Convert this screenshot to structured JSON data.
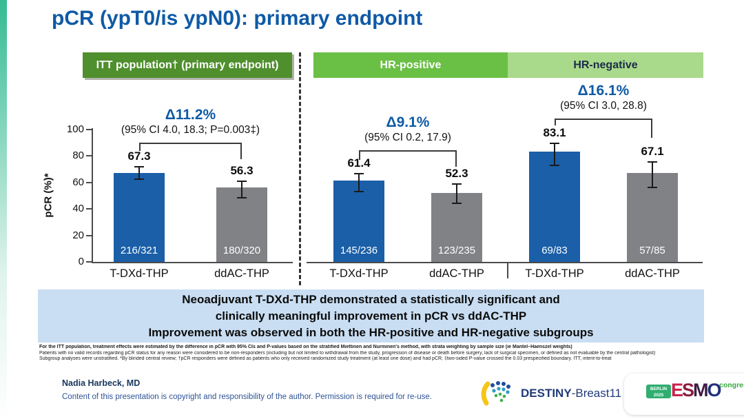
{
  "slide": {
    "banner_lines": [
      "Neoadjuvant T-DXd-THP demonstrated a statistically significant and",
      "clinically meaningful improvement in pCR vs ddAC-THP",
      "Improvement was observed in both the HR-positive and HR-negative subgroups"
    ],
    "footnotes": [
      "For the ITT population, treatment effects were estimated by the difference in pCR with 95% CIs and P-values based on the stratified Miettinen and Nurminen's method, with strata weighting by sample size (ie Mantel–Haenszel weights)",
      "Patients with no valid records regarding pCR status for any reason were considered to be non-responders (including but not limited to withdrawal from the study, progression of disease or death before surgery, lack of surgical specimen, or defined as not evaluable by the central pathologist)",
      "Subgroup analyses were unstratified. *By blinded central review; †pCR responders were defined as patients who only received randomized study treatment (at least one dose) and had pCR; ‡two-sided P-value crossed the 0.03 prespecified boundary. ITT, intent-to-treat"
    ],
    "footer": {
      "author": "Nadia Harbeck, MD",
      "copyright": "Content of this presentation is copyright and responsibility of the author. Permission is required for re-use."
    },
    "logos": {
      "destiny": {
        "bold": "DESTINY",
        "rest": "-Breast11"
      },
      "esmo": {
        "location": "BERLIN",
        "year": "2025",
        "letters": [
          "E",
          "S",
          "M",
          "O"
        ],
        "congress": "congress"
      }
    }
  },
  "colors": {
    "title_blue": "#0f5aa5",
    "delta_blue": "#0f5aa5",
    "bar_blue": "#1a5fa8",
    "bar_gray": "#808285",
    "itt_green": "#4f8f2d",
    "hrpos_green": "#6abf45",
    "hrneg_green": "#a9d98a",
    "banner_bg": "#c9def2",
    "axis_gray": "#4a4a4a",
    "esmo_letter_colors": [
      "#c8234b",
      "#8c1d40",
      "#3d1b45",
      "#20317a"
    ]
  },
  "chart_data": {
    "type": "bar",
    "title": "pCR (ypT0/is ypN0): primary endpoint",
    "ylabel": "pCR (%)*",
    "ylim": [
      0,
      100
    ],
    "yticks": [
      0,
      20,
      40,
      60,
      80,
      100
    ],
    "grid": false,
    "legend": "none",
    "panels": [
      {
        "header": "ITT population† (primary endpoint)",
        "delta": "Δ11.2%",
        "ci": "(95% CI 4.0, 18.3; P=0.003‡)",
        "bars": [
          {
            "label": "T-DXd-THP",
            "value": 67.3,
            "n": "216/321",
            "err_low": 62.5,
            "err_high": 72,
            "color": "blue"
          },
          {
            "label": "ddAC-THP",
            "value": 56.3,
            "n": "180/320",
            "err_low": 48.5,
            "err_high": 61,
            "color": "gray"
          }
        ]
      },
      {
        "header": "HR-positive",
        "delta": "Δ9.1%",
        "ci": "(95% CI 0.2, 17.9)",
        "bars": [
          {
            "label": "T-DXd-THP",
            "value": 61.4,
            "n": "145/236",
            "err_low": 53,
            "err_high": 66.5,
            "color": "blue"
          },
          {
            "label": "ddAC-THP",
            "value": 52.3,
            "n": "123/235",
            "err_low": 44.5,
            "err_high": 59,
            "color": "gray"
          }
        ]
      },
      {
        "header": "HR-negative",
        "delta": "Δ16.1%",
        "ci": "(95% CI 3.0, 28.8)",
        "bars": [
          {
            "label": "T-DXd-THP",
            "value": 83.1,
            "n": "69/83",
            "err_low": 73,
            "err_high": 89.5,
            "color": "blue"
          },
          {
            "label": "ddAC-THP",
            "value": 67.1,
            "n": "57/85",
            "err_low": 56,
            "err_high": 75.5,
            "color": "gray"
          }
        ]
      }
    ]
  }
}
